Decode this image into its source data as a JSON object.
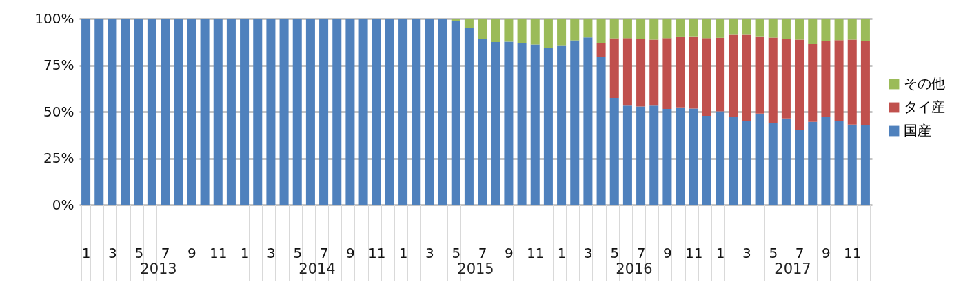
{
  "chart_data": {
    "type": "bar",
    "stacked": true,
    "categories": [
      "1",
      null,
      "3",
      null,
      "5",
      null,
      "7",
      null,
      "9",
      null,
      "11",
      null,
      "1",
      null,
      "3",
      null,
      "5",
      null,
      "7",
      null,
      "9",
      null,
      "11",
      null,
      "1",
      null,
      "3",
      null,
      "5",
      null,
      "7",
      null,
      "9",
      null,
      "11",
      null,
      "1",
      null,
      "3",
      null,
      "5",
      null,
      "7",
      null,
      "9",
      null,
      "11",
      null,
      "1",
      null,
      "3",
      null,
      "5",
      null,
      "7",
      null,
      "9",
      null,
      "11",
      null
    ],
    "series": [
      {
        "name": "国産",
        "color": "#4f81bd",
        "values": [
          100,
          100,
          100,
          100,
          100,
          100,
          100,
          100,
          100,
          100,
          100,
          100,
          100,
          100,
          100,
          100,
          100,
          100,
          100,
          100,
          100,
          100,
          100,
          100,
          100,
          100,
          100,
          100,
          98.9,
          95.0,
          88.9,
          87.4,
          87.6,
          86.7,
          86.1,
          84.1,
          85.7,
          88.3,
          89.9,
          79.6,
          57.4,
          53.2,
          52.8,
          53.2,
          51.5,
          52.3,
          51.7,
          47.8,
          50.2,
          47.0,
          45.0,
          49.0,
          44.0,
          46.4,
          40.0,
          44.5,
          47.0,
          45.2,
          43.1,
          42.9
        ]
      },
      {
        "name": "タイ産",
        "color": "#c0504d",
        "values": [
          null,
          null,
          null,
          null,
          null,
          null,
          null,
          null,
          null,
          null,
          null,
          null,
          null,
          null,
          null,
          null,
          null,
          null,
          null,
          null,
          null,
          null,
          null,
          null,
          null,
          null,
          null,
          null,
          null,
          null,
          null,
          null,
          null,
          null,
          null,
          null,
          null,
          null,
          null,
          7.2,
          32.0,
          36.3,
          36.2,
          35.5,
          38.0,
          38.1,
          38.8,
          41.7,
          39.5,
          44.3,
          46.3,
          41.5,
          45.8,
          42.8,
          48.7,
          41.8,
          41.1,
          43.2,
          45.6,
          45.2
        ]
      },
      {
        "name": "その他",
        "color": "#9bbb59",
        "values": [
          null,
          null,
          null,
          null,
          null,
          null,
          null,
          null,
          null,
          null,
          null,
          null,
          null,
          null,
          null,
          null,
          null,
          null,
          null,
          null,
          null,
          null,
          null,
          null,
          null,
          null,
          null,
          null,
          1.1,
          5.0,
          11.1,
          12.6,
          12.4,
          13.3,
          13.9,
          15.9,
          14.3,
          11.7,
          10.1,
          13.2,
          10.6,
          10.5,
          11.0,
          11.3,
          10.5,
          9.6,
          9.5,
          10.5,
          10.3,
          8.7,
          8.7,
          9.5,
          10.2,
          10.8,
          11.3,
          13.7,
          11.9,
          11.6,
          11.3,
          11.9
        ]
      }
    ],
    "ylim": [
      0,
      100
    ],
    "yticks": [
      {
        "value": 0,
        "label": "0%"
      },
      {
        "value": 25,
        "label": "25%"
      },
      {
        "value": 50,
        "label": "50%"
      },
      {
        "value": 75,
        "label": "75%"
      },
      {
        "value": 100,
        "label": "100%"
      }
    ],
    "grid": "y",
    "legend": "right",
    "annotations": [
      "2013",
      "2014",
      "2015",
      "2016",
      "2017"
    ]
  }
}
